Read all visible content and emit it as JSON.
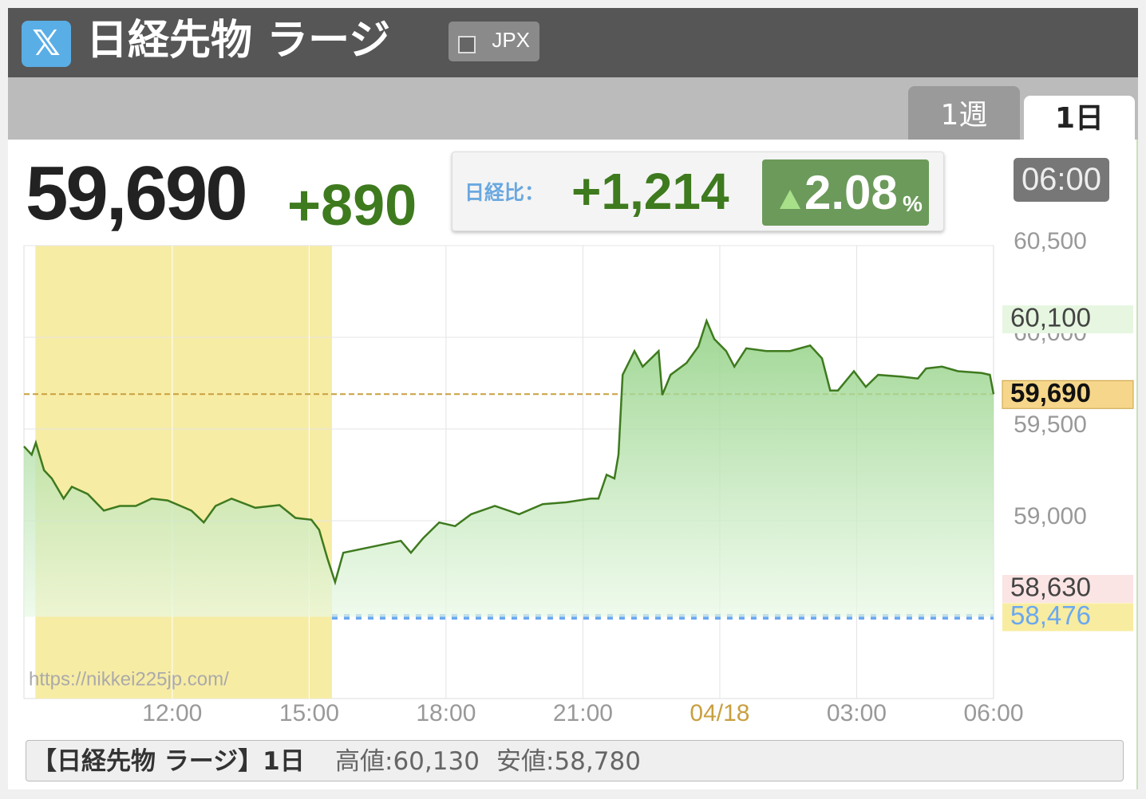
{
  "header": {
    "title": "日経先物 ラージ",
    "source": "JPX"
  },
  "tabs": [
    "1週",
    "1日"
  ],
  "price": {
    "value": "59,690",
    "change": "+890"
  },
  "comparison": {
    "label": "日経比：",
    "value": "+1,214",
    "percent": "2.08",
    "unit": "%"
  },
  "time": "06:00",
  "chart_data": {
    "type": "line",
    "color": "#3e7a1e",
    "fill_color": "#8ecf80",
    "x": [
      8.75,
      8.92,
      9.01,
      9.19,
      9.36,
      9.62,
      9.8,
      10.15,
      10.5,
      10.85,
      11.2,
      11.55,
      11.9,
      12.42,
      12.69,
      12.95,
      13.3,
      13.82,
      14.35,
      14.7,
      15.05,
      15.22,
      15.4,
      15.57,
      15.75,
      17.01,
      17.23,
      17.5,
      17.85,
      18.2,
      18.55,
      19.07,
      19.6,
      20.12,
      20.64,
      21.17,
      21.34,
      21.52,
      21.69,
      21.78,
      21.87,
      22.13,
      22.31,
      22.66,
      22.74,
      22.92,
      23.27,
      23.53,
      23.71,
      23.88,
      24.14,
      24.32,
      24.58,
      25.02,
      25.54,
      25.98,
      26.24,
      26.42,
      26.59,
      26.94,
      27.2,
      27.47,
      27.99,
      28.34,
      28.52,
      28.87,
      29.22,
      29.74,
      29.92,
      30
    ],
    "values": [
      59405,
      59360,
      59425,
      59275,
      59230,
      59120,
      59185,
      59145,
      59055,
      59080,
      59080,
      59120,
      59110,
      59055,
      58990,
      59080,
      59120,
      59070,
      59085,
      59015,
      59005,
      58950,
      58795,
      58665,
      58825,
      58890,
      58825,
      58905,
      58990,
      58970,
      59035,
      59080,
      59035,
      59090,
      59100,
      59120,
      59120,
      59250,
      59230,
      59360,
      59795,
      59925,
      59840,
      59925,
      59685,
      59795,
      59860,
      59950,
      60090,
      59990,
      59925,
      59840,
      59940,
      59925,
      59925,
      59955,
      59885,
      59710,
      59710,
      59815,
      59730,
      59795,
      59785,
      59775,
      59830,
      59840,
      59815,
      59805,
      59795,
      59690
    ],
    "xlim": [
      8.75,
      30
    ],
    "xticks": [
      {
        "value": 12,
        "label": "12:00"
      },
      {
        "value": 15,
        "label": "15:00"
      },
      {
        "value": 18,
        "label": "18:00"
      },
      {
        "value": 21,
        "label": "21:00"
      },
      {
        "value": 24,
        "label": "04/18",
        "color": "#c8a040"
      },
      {
        "value": 27,
        "label": "03:00"
      },
      {
        "value": 30,
        "label": "06:00"
      }
    ],
    "ylim": [
      58030,
      60500
    ],
    "yticks": [
      {
        "value": 59000,
        "label": "59,000"
      },
      {
        "value": 59500,
        "label": "59,500"
      },
      {
        "value": 60000,
        "label": "60,000"
      },
      {
        "value": 60500,
        "label": "60,500"
      }
    ],
    "grid": true,
    "highlight_x": [
      9,
      15.5
    ],
    "highlight_color": "#f7eca4",
    "markers": [
      {
        "value": 60100,
        "label": "60,100",
        "color": "#444",
        "background": "#e6f6e0"
      },
      {
        "value": 59690,
        "label": "59,690",
        "color": "#111",
        "background": "#f6d68a",
        "bold": true,
        "line": "dashed",
        "line_color": "#c8a040",
        "line_x": [
          8.75,
          30
        ]
      },
      {
        "value": 58630,
        "label": "58,630",
        "color": "#444",
        "background": "#fbe4e4"
      },
      {
        "value": 58476,
        "label": "58,476",
        "color": "#6aa8f0",
        "background": "#f8eca0",
        "line": "dotted",
        "line_color": "#6aa8f0",
        "line_x": [
          15.5,
          30
        ]
      }
    ],
    "watermark": "https://nikkei225jp.com/"
  },
  "footer": {
    "title": "【日経先物 ラージ】1日",
    "high": "高値:60,130",
    "low": "安値:58,780"
  }
}
